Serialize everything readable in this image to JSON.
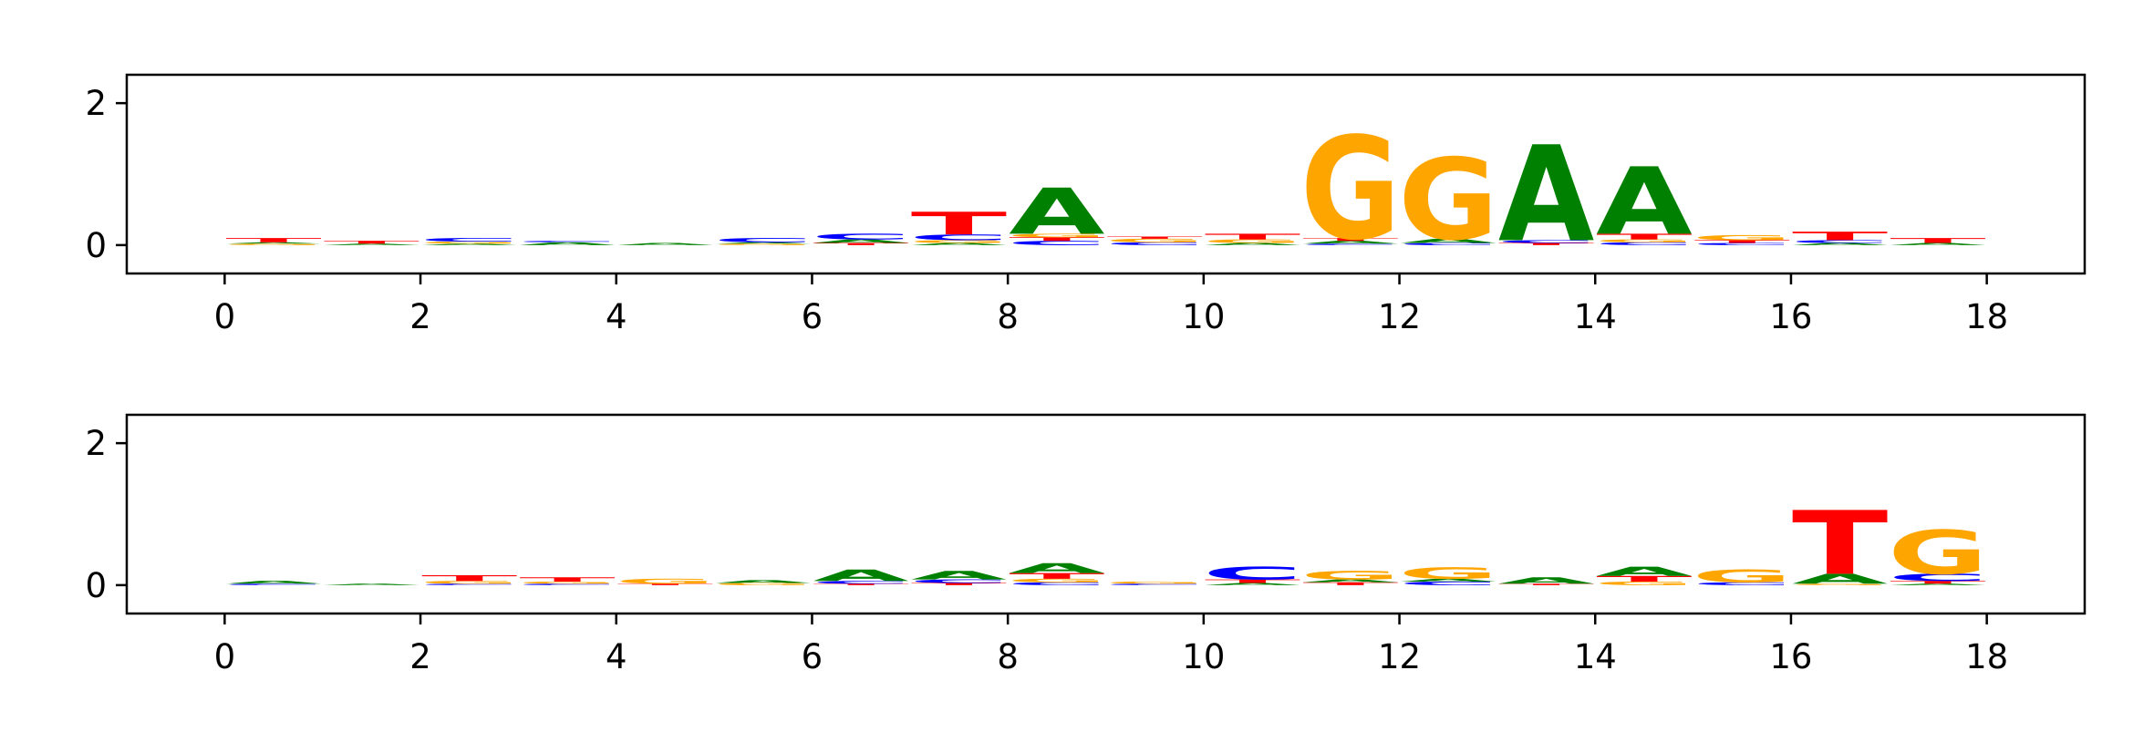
{
  "chart_data": [
    {
      "type": "sequence-logo",
      "panel": "top",
      "xlim": [
        -1,
        19
      ],
      "ylim": [
        -0.4,
        2.4
      ],
      "xticks": [
        "0",
        "2",
        "4",
        "6",
        "8",
        "10",
        "12",
        "14",
        "16",
        "18"
      ],
      "yticks": [
        "0",
        "2"
      ],
      "alphabet_colors": {
        "A": "#008000",
        "C": "#0000ff",
        "G": "#ffa500",
        "T": "#ff0000"
      },
      "positions": [
        {
          "x": 0,
          "stack": [
            [
              "G",
              0.02
            ],
            [
              "A",
              0.02
            ],
            [
              "T",
              0.06
            ]
          ]
        },
        {
          "x": 1,
          "stack": [
            [
              "A",
              0.02
            ],
            [
              "T",
              0.04
            ]
          ]
        },
        {
          "x": 2,
          "stack": [
            [
              "A",
              0.02
            ],
            [
              "G",
              0.03
            ],
            [
              "C",
              0.05
            ]
          ]
        },
        {
          "x": 3,
          "stack": [
            [
              "A",
              0.04
            ],
            [
              "C",
              0.02
            ]
          ]
        },
        {
          "x": 4,
          "stack": [
            [
              "A",
              0.03
            ]
          ]
        },
        {
          "x": 5,
          "stack": [
            [
              "G",
              0.02
            ],
            [
              "A",
              0.02
            ],
            [
              "C",
              0.06
            ]
          ]
        },
        {
          "x": 6,
          "stack": [
            [
              "T",
              0.03
            ],
            [
              "A",
              0.05
            ],
            [
              "C",
              0.08
            ]
          ]
        },
        {
          "x": 7,
          "stack": [
            [
              "A",
              0.03
            ],
            [
              "G",
              0.04
            ],
            [
              "C",
              0.08
            ],
            [
              "T",
              0.32
            ]
          ]
        },
        {
          "x": 8,
          "stack": [
            [
              "C",
              0.06
            ],
            [
              "T",
              0.05
            ],
            [
              "G",
              0.05
            ],
            [
              "A",
              0.65
            ]
          ]
        },
        {
          "x": 9,
          "stack": [
            [
              "C",
              0.04
            ],
            [
              "G",
              0.05
            ],
            [
              "T",
              0.03
            ]
          ]
        },
        {
          "x": 10,
          "stack": [
            [
              "A",
              0.03
            ],
            [
              "G",
              0.05
            ],
            [
              "T",
              0.08
            ]
          ]
        },
        {
          "x": 11,
          "stack": [
            [
              "C",
              0.02
            ],
            [
              "A",
              0.04
            ],
            [
              "T",
              0.04
            ],
            [
              "G",
              1.45
            ]
          ]
        },
        {
          "x": 12,
          "stack": [
            [
              "C",
              0.03
            ],
            [
              "A",
              0.06
            ],
            [
              "G",
              1.15
            ]
          ]
        },
        {
          "x": 13,
          "stack": [
            [
              "T",
              0.03
            ],
            [
              "C",
              0.04
            ],
            [
              "A",
              1.35
            ]
          ]
        },
        {
          "x": 14,
          "stack": [
            [
              "C",
              0.04
            ],
            [
              "G",
              0.04
            ],
            [
              "T",
              0.08
            ],
            [
              "A",
              0.95
            ]
          ]
        },
        {
          "x": 15,
          "stack": [
            [
              "C",
              0.03
            ],
            [
              "T",
              0.04
            ],
            [
              "G",
              0.07
            ]
          ]
        },
        {
          "x": 16,
          "stack": [
            [
              "A",
              0.03
            ],
            [
              "C",
              0.04
            ],
            [
              "T",
              0.12
            ]
          ]
        },
        {
          "x": 17,
          "stack": [
            [
              "A",
              0.03
            ],
            [
              "T",
              0.07
            ]
          ]
        }
      ]
    },
    {
      "type": "sequence-logo",
      "panel": "bottom",
      "xlim": [
        -1,
        19
      ],
      "ylim": [
        -0.4,
        2.4
      ],
      "xticks": [
        "0",
        "2",
        "4",
        "6",
        "8",
        "10",
        "12",
        "14",
        "16",
        "18"
      ],
      "yticks": [
        "0",
        "2"
      ],
      "alphabet_colors": {
        "A": "#008000",
        "C": "#0000ff",
        "G": "#ffa500",
        "T": "#ff0000"
      },
      "positions": [
        {
          "x": 0,
          "stack": [
            [
              "C",
              0.02
            ],
            [
              "A",
              0.04
            ]
          ]
        },
        {
          "x": 1,
          "stack": [
            [
              "A",
              0.02
            ]
          ]
        },
        {
          "x": 2,
          "stack": [
            [
              "C",
              0.02
            ],
            [
              "G",
              0.04
            ],
            [
              "T",
              0.08
            ]
          ]
        },
        {
          "x": 3,
          "stack": [
            [
              "C",
              0.02
            ],
            [
              "G",
              0.03
            ],
            [
              "T",
              0.06
            ]
          ]
        },
        {
          "x": 4,
          "stack": [
            [
              "T",
              0.02
            ],
            [
              "G",
              0.07
            ]
          ]
        },
        {
          "x": 5,
          "stack": [
            [
              "G",
              0.03
            ],
            [
              "A",
              0.04
            ]
          ]
        },
        {
          "x": 6,
          "stack": [
            [
              "T",
              0.02
            ],
            [
              "C",
              0.04
            ],
            [
              "A",
              0.16
            ]
          ]
        },
        {
          "x": 7,
          "stack": [
            [
              "T",
              0.03
            ],
            [
              "C",
              0.05
            ],
            [
              "A",
              0.12
            ]
          ]
        },
        {
          "x": 8,
          "stack": [
            [
              "C",
              0.04
            ],
            [
              "G",
              0.05
            ],
            [
              "T",
              0.08
            ],
            [
              "A",
              0.14
            ]
          ]
        },
        {
          "x": 9,
          "stack": [
            [
              "C",
              0.02
            ],
            [
              "G",
              0.03
            ]
          ]
        },
        {
          "x": 10,
          "stack": [
            [
              "A",
              0.03
            ],
            [
              "T",
              0.05
            ],
            [
              "C",
              0.18
            ]
          ]
        },
        {
          "x": 11,
          "stack": [
            [
              "T",
              0.04
            ],
            [
              "A",
              0.04
            ],
            [
              "G",
              0.12
            ]
          ]
        },
        {
          "x": 12,
          "stack": [
            [
              "C",
              0.05
            ],
            [
              "A",
              0.04
            ],
            [
              "G",
              0.16
            ]
          ]
        },
        {
          "x": 13,
          "stack": [
            [
              "T",
              0.02
            ],
            [
              "A",
              0.09
            ]
          ]
        },
        {
          "x": 14,
          "stack": [
            [
              "G",
              0.05
            ],
            [
              "T",
              0.08
            ],
            [
              "A",
              0.13
            ]
          ]
        },
        {
          "x": 15,
          "stack": [
            [
              "C",
              0.04
            ],
            [
              "G",
              0.18
            ]
          ]
        },
        {
          "x": 16,
          "stack": [
            [
              "G",
              0.02
            ],
            [
              "A",
              0.14
            ],
            [
              "T",
              0.9
            ]
          ]
        },
        {
          "x": 17,
          "stack": [
            [
              "A",
              0.02
            ],
            [
              "T",
              0.04
            ],
            [
              "C",
              0.1
            ],
            [
              "G",
              0.62
            ]
          ]
        }
      ]
    }
  ]
}
